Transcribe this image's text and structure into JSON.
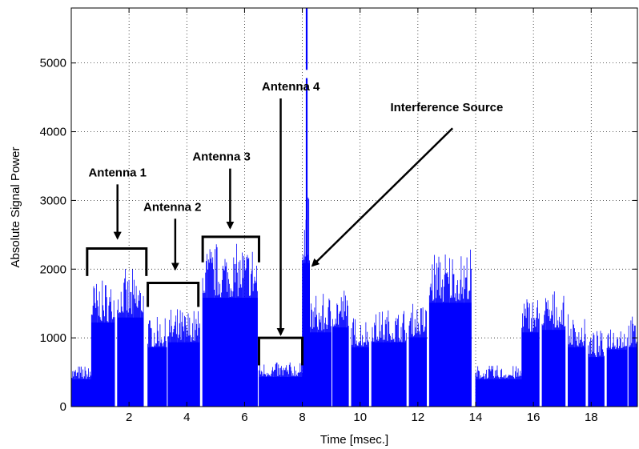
{
  "chart_data": {
    "type": "area",
    "xlabel": "Time [msec.]",
    "ylabel": "Absolute Signal Power",
    "xlim": [
      0,
      19.6
    ],
    "ylim": [
      0,
      5800
    ],
    "xticks": [
      2,
      4,
      6,
      8,
      10,
      12,
      14,
      16,
      18
    ],
    "yticks": [
      0,
      1000,
      2000,
      3000,
      4000,
      5000
    ],
    "grid": true,
    "series_color": "#0000ff",
    "segments": [
      {
        "x_start": 0.0,
        "x_end": 0.7,
        "level": 550
      },
      {
        "x_start": 0.7,
        "x_end": 1.5,
        "level": 1700
      },
      {
        "x_start": 1.6,
        "x_end": 2.5,
        "level": 1800
      },
      {
        "x_start": 2.65,
        "x_end": 3.3,
        "level": 1200
      },
      {
        "x_start": 3.35,
        "x_end": 4.45,
        "level": 1300
      },
      {
        "x_start": 4.55,
        "x_end": 6.45,
        "level": 2200
      },
      {
        "x_start": 6.5,
        "x_end": 8.0,
        "level": 600
      },
      {
        "x_start": 8.0,
        "x_end": 8.25,
        "level": 2900
      },
      {
        "x_start": 8.25,
        "x_end": 9.0,
        "level": 1500
      },
      {
        "x_start": 9.05,
        "x_end": 9.6,
        "level": 1600
      },
      {
        "x_start": 9.7,
        "x_end": 10.3,
        "level": 1200
      },
      {
        "x_start": 10.4,
        "x_end": 11.6,
        "level": 1300
      },
      {
        "x_start": 11.7,
        "x_end": 12.3,
        "level": 1400
      },
      {
        "x_start": 12.4,
        "x_end": 13.85,
        "level": 2100
      },
      {
        "x_start": 14.0,
        "x_end": 15.6,
        "level": 550
      },
      {
        "x_start": 15.6,
        "x_end": 16.2,
        "level": 1500
      },
      {
        "x_start": 16.3,
        "x_end": 17.1,
        "level": 1550
      },
      {
        "x_start": 17.2,
        "x_end": 17.8,
        "level": 1200
      },
      {
        "x_start": 17.9,
        "x_end": 18.45,
        "level": 1000
      },
      {
        "x_start": 18.55,
        "x_end": 19.25,
        "level": 1150
      },
      {
        "x_start": 19.3,
        "x_end": 19.6,
        "level": 1200
      }
    ],
    "spike": {
      "x": 8.15,
      "peak": 5800
    },
    "annotations": [
      {
        "text": "Antenna 1",
        "text_x": 1.6,
        "text_y": 3350,
        "arrow_to": [
          1.6,
          2450
        ],
        "bracket": [
          0.55,
          2.6,
          2300,
          1900
        ]
      },
      {
        "text": "Antenna 2",
        "text_x": 3.5,
        "text_y": 2850,
        "arrow_to": [
          3.6,
          2000
        ],
        "bracket": [
          2.65,
          4.4,
          1800,
          1450
        ]
      },
      {
        "text": "Antenna 3",
        "text_x": 5.2,
        "text_y": 3580,
        "arrow_to": [
          5.5,
          2600
        ],
        "bracket": [
          4.55,
          6.5,
          2470,
          2100
        ]
      },
      {
        "text": "Antenna 4",
        "text_x": 7.6,
        "text_y": 4600,
        "arrow_to": [
          7.25,
          1050
        ],
        "bracket": [
          6.5,
          8.0,
          1000,
          600
        ]
      },
      {
        "text": "Interference Source",
        "text_x": 13.0,
        "text_y": 4300,
        "arrow_from": [
          13.2,
          4050
        ],
        "arrow_to": [
          8.35,
          2050
        ]
      }
    ]
  }
}
